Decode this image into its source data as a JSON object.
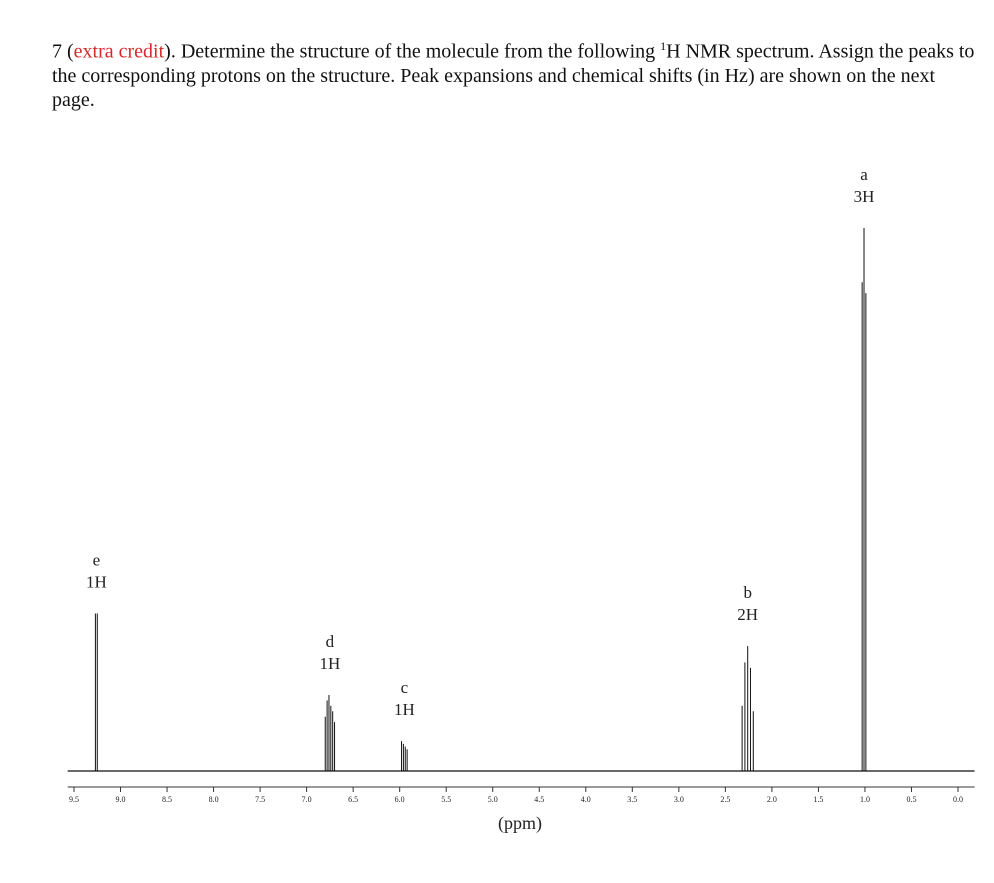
{
  "question": {
    "parts": [
      "7 (",
      "extra credit",
      "). Determine the structure of the molecule from the following ",
      "1",
      "H NMR spectrum. Assign the peaks to the corresponding protons on the structure. Peak expansions and chemical shifts (in Hz) are shown on the next page."
    ]
  },
  "chart_data": {
    "type": "spectrum",
    "xlabel": "(ppm)",
    "xlim": [
      9.6,
      -0.2
    ],
    "ylim": [
      0,
      100
    ],
    "color": "#111111",
    "xticks": [
      9.5,
      {
        "value": 9,
        "label": "9.0"
      },
      8.5,
      {
        "value": 8,
        "label": "8.0"
      },
      7.5,
      {
        "value": 7,
        "label": "7.0"
      },
      6.5,
      {
        "value": 6,
        "label": "6.0"
      },
      5.5,
      {
        "value": 5,
        "label": "5.0"
      },
      4.5,
      {
        "value": 4,
        "label": "4.0"
      },
      3.5,
      {
        "value": 3,
        "label": "3.0"
      },
      2.5,
      {
        "value": 2,
        "label": "2.0"
      },
      1.5,
      {
        "value": 1,
        "label": "1.0"
      },
      0.5,
      {
        "value": 0,
        "label": "0.0"
      }
    ],
    "peaks": [
      {
        "label": "e",
        "integration": "1H",
        "lines": [
          {
            "ppm": 9.27,
            "height": 29
          },
          {
            "ppm": 9.25,
            "height": 29
          }
        ]
      },
      {
        "label": "d",
        "integration": "1H",
        "lines": [
          {
            "ppm": 6.8,
            "height": 10
          },
          {
            "ppm": 6.78,
            "height": 13
          },
          {
            "ppm": 6.76,
            "height": 14
          },
          {
            "ppm": 6.74,
            "height": 12
          },
          {
            "ppm": 6.72,
            "height": 11
          },
          {
            "ppm": 6.7,
            "height": 9
          }
        ]
      },
      {
        "label": "c",
        "integration": "1H",
        "lines": [
          {
            "ppm": 5.98,
            "height": 5.5
          },
          {
            "ppm": 5.96,
            "height": 5
          },
          {
            "ppm": 5.94,
            "height": 4.5
          },
          {
            "ppm": 5.92,
            "height": 4
          }
        ]
      },
      {
        "label": "b",
        "integration": "2H",
        "lines": [
          {
            "ppm": 2.32,
            "height": 12
          },
          {
            "ppm": 2.29,
            "height": 20
          },
          {
            "ppm": 2.26,
            "height": 23
          },
          {
            "ppm": 2.23,
            "height": 19
          },
          {
            "ppm": 2.2,
            "height": 11
          }
        ]
      },
      {
        "label": "a",
        "integration": "3H",
        "lines": [
          {
            "ppm": 1.03,
            "height": 90
          },
          {
            "ppm": 1.01,
            "height": 100
          },
          {
            "ppm": 0.99,
            "height": 88
          }
        ]
      }
    ]
  }
}
